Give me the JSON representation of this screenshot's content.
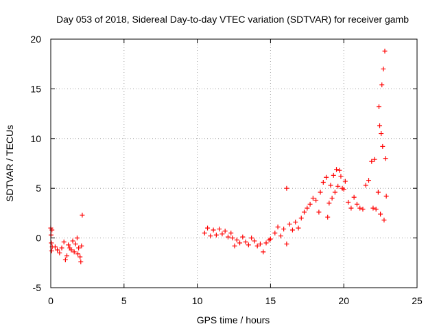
{
  "chart_data": {
    "type": "scatter",
    "title": "Day 053 of 2018, Sidereal Day-to-day VTEC variation (SDTVAR) for receiver gamb",
    "xlabel": "GPS time / hours",
    "ylabel": "SDTVAR / TECUs",
    "xlim": [
      0,
      25
    ],
    "ylim": [
      -5,
      20
    ],
    "xticks": [
      0,
      5,
      10,
      15,
      20,
      25
    ],
    "yticks": [
      -5,
      0,
      5,
      10,
      15,
      20
    ],
    "grid": true,
    "marker": "+",
    "color": "#ff0000",
    "series": [
      {
        "name": "SDTVAR",
        "points": [
          [
            0.0,
            1.0
          ],
          [
            0.02,
            0.3
          ],
          [
            0.04,
            -0.5
          ],
          [
            0.06,
            -1.3
          ],
          [
            0.08,
            0.8
          ],
          [
            0.1,
            -0.9
          ],
          [
            0.3,
            -0.9
          ],
          [
            0.45,
            -1.2
          ],
          [
            0.6,
            -1.5
          ],
          [
            0.75,
            -1.0
          ],
          [
            0.9,
            -0.4
          ],
          [
            1.0,
            -2.2
          ],
          [
            1.1,
            -1.8
          ],
          [
            1.2,
            -0.7
          ],
          [
            1.3,
            -1.0
          ],
          [
            1.4,
            -1.2
          ],
          [
            1.5,
            -0.3
          ],
          [
            1.6,
            -1.4
          ],
          [
            1.7,
            -0.6
          ],
          [
            1.8,
            0.0
          ],
          [
            1.85,
            -1.6
          ],
          [
            1.9,
            -1.0
          ],
          [
            2.0,
            -1.9
          ],
          [
            2.05,
            -2.4
          ],
          [
            2.1,
            -0.8
          ],
          [
            2.15,
            2.3
          ],
          [
            10.5,
            0.5
          ],
          [
            10.7,
            1.0
          ],
          [
            10.9,
            0.2
          ],
          [
            11.1,
            0.8
          ],
          [
            11.3,
            0.3
          ],
          [
            11.5,
            0.9
          ],
          [
            11.7,
            0.4
          ],
          [
            11.9,
            0.7
          ],
          [
            12.1,
            0.1
          ],
          [
            12.3,
            0.5
          ],
          [
            12.4,
            0.0
          ],
          [
            12.55,
            -0.8
          ],
          [
            12.7,
            -0.2
          ],
          [
            12.9,
            -0.5
          ],
          [
            13.1,
            0.1
          ],
          [
            13.3,
            -0.4
          ],
          [
            13.5,
            -0.7
          ],
          [
            13.7,
            0.0
          ],
          [
            13.9,
            -0.3
          ],
          [
            14.1,
            -0.8
          ],
          [
            14.3,
            -0.6
          ],
          [
            14.5,
            -1.4
          ],
          [
            14.7,
            -0.5
          ],
          [
            14.9,
            -0.2
          ],
          [
            15.0,
            -0.1
          ],
          [
            15.3,
            0.5
          ],
          [
            15.5,
            1.1
          ],
          [
            15.7,
            0.2
          ],
          [
            15.9,
            0.9
          ],
          [
            16.1,
            -0.6
          ],
          [
            16.1,
            5.0
          ],
          [
            16.3,
            1.4
          ],
          [
            16.5,
            0.8
          ],
          [
            16.7,
            1.6
          ],
          [
            16.9,
            1.0
          ],
          [
            17.1,
            2.0
          ],
          [
            17.3,
            2.6
          ],
          [
            17.5,
            3.0
          ],
          [
            17.7,
            3.4
          ],
          [
            17.9,
            4.0
          ],
          [
            18.1,
            3.8
          ],
          [
            18.3,
            2.6
          ],
          [
            18.4,
            4.6
          ],
          [
            18.6,
            5.6
          ],
          [
            18.8,
            6.1
          ],
          [
            18.9,
            2.1
          ],
          [
            19.0,
            3.5
          ],
          [
            19.1,
            5.3
          ],
          [
            19.2,
            4.0
          ],
          [
            19.3,
            6.3
          ],
          [
            19.4,
            4.6
          ],
          [
            19.5,
            6.9
          ],
          [
            19.6,
            5.2
          ],
          [
            19.7,
            6.8
          ],
          [
            19.8,
            6.2
          ],
          [
            19.9,
            5.0
          ],
          [
            20.0,
            4.9
          ],
          [
            20.1,
            5.7
          ],
          [
            20.3,
            3.6
          ],
          [
            20.5,
            3.0
          ],
          [
            20.7,
            4.1
          ],
          [
            20.9,
            3.4
          ],
          [
            21.1,
            3.0
          ],
          [
            21.3,
            2.9
          ],
          [
            21.5,
            5.3
          ],
          [
            21.7,
            5.8
          ],
          [
            21.9,
            7.7
          ],
          [
            22.0,
            3.0
          ],
          [
            22.1,
            7.9
          ],
          [
            22.2,
            2.9
          ],
          [
            22.35,
            4.6
          ],
          [
            22.4,
            13.2
          ],
          [
            22.45,
            11.3
          ],
          [
            22.5,
            2.4
          ],
          [
            22.55,
            10.5
          ],
          [
            22.6,
            15.4
          ],
          [
            22.65,
            9.2
          ],
          [
            22.7,
            17.0
          ],
          [
            22.75,
            1.8
          ],
          [
            22.8,
            18.8
          ],
          [
            22.85,
            8.0
          ],
          [
            22.9,
            4.2
          ]
        ]
      }
    ]
  }
}
